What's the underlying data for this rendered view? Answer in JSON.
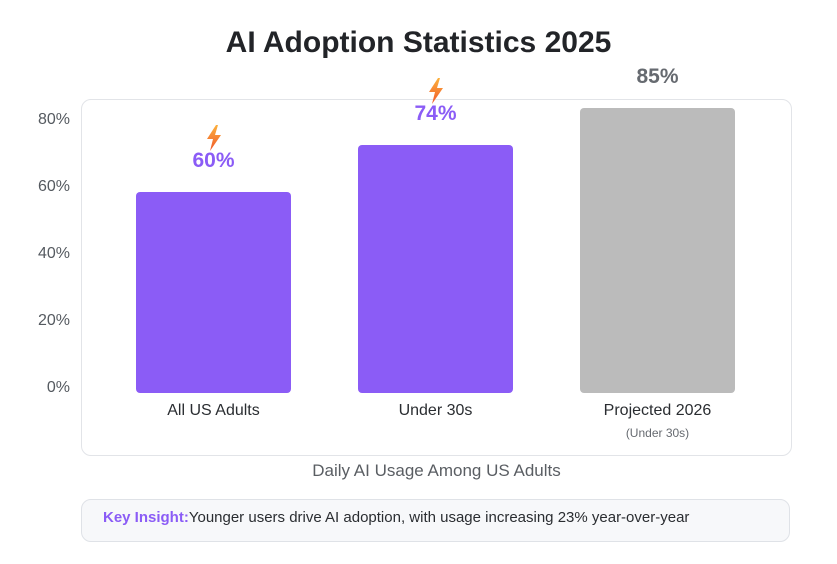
{
  "chart_data": {
    "type": "bar",
    "title": "AI Adoption Statistics 2025",
    "xlabel": "Daily AI Usage Among US Adults",
    "ylabel": "",
    "ylim": [
      0,
      80
    ],
    "yticks": [
      "0%",
      "20%",
      "40%",
      "60%",
      "80%"
    ],
    "grid": false,
    "categories": [
      "All US Adults",
      "Under 30s",
      "Projected 2026"
    ],
    "category_sublabels": [
      "",
      "",
      "(Under 30s)"
    ],
    "values": [
      60,
      74,
      85
    ],
    "value_labels": [
      "60%",
      "74%",
      "85%"
    ],
    "bar_colors": [
      "#8b5cf6",
      "#8b5cf6",
      "#bbbbbb"
    ],
    "label_colors": [
      "#8b5cf6",
      "#8b5cf6",
      "#666a70"
    ],
    "bar_icons": [
      "lightning-icon",
      "lightning-icon",
      ""
    ]
  },
  "insight": {
    "key": "Key Insight:",
    "text": "Younger users drive AI adoption, with usage increasing 23% year-over-year"
  }
}
